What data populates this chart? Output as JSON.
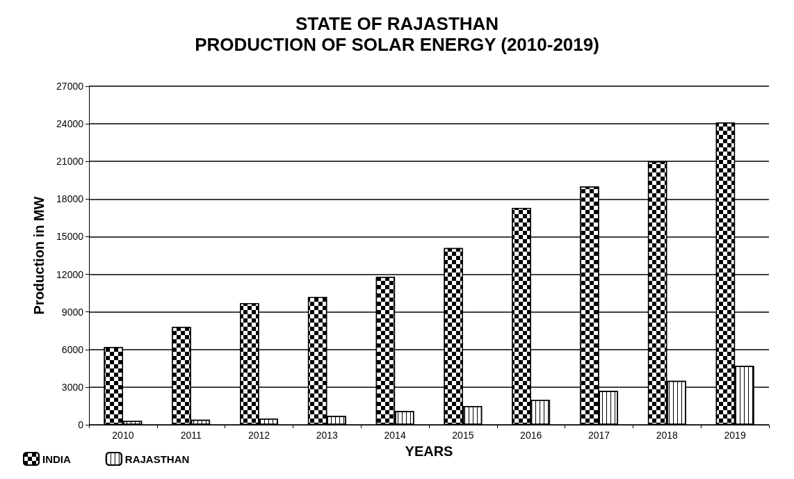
{
  "chart_data": {
    "type": "bar",
    "title": "STATE OF RAJASTHAN\nPRODUCTION OF SOLAR ENERGY (2010-2019)",
    "xlabel": "YEARS",
    "ylabel": "Production in MW",
    "categories": [
      "2010",
      "2011",
      "2012",
      "2013",
      "2014",
      "2015",
      "2016",
      "2017",
      "2018",
      "2019"
    ],
    "series": [
      {
        "name": "INDIA",
        "color": "#000000",
        "values": [
          6200,
          7800,
          9700,
          10200,
          11800,
          14100,
          17300,
          19000,
          21000,
          24100
        ]
      },
      {
        "name": "RAJASTHAN",
        "color": "#ffffff",
        "values": [
          300,
          400,
          500,
          700,
          1100,
          1500,
          2000,
          2700,
          3500,
          4700
        ]
      }
    ],
    "ylim": [
      0,
      27000
    ],
    "yticks": [
      0,
      3000,
      6000,
      9000,
      12000,
      15000,
      18000,
      21000,
      24000,
      27000
    ],
    "grid": "y",
    "legend": "bottom left"
  }
}
